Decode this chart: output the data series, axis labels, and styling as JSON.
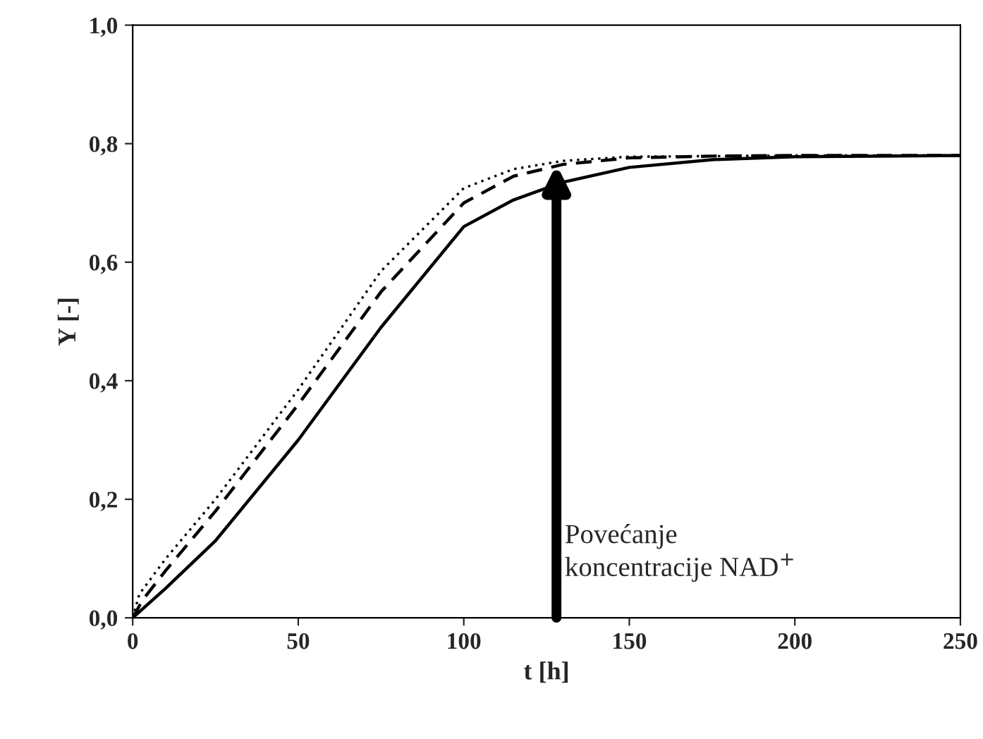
{
  "chart_data": {
    "type": "line",
    "xlabel": "t [h]",
    "ylabel": "Y [-]",
    "xlim": [
      0,
      250
    ],
    "xticks": [
      0,
      50,
      100,
      150,
      200,
      250
    ],
    "ylim": [
      0,
      1.0
    ],
    "yticks": [
      {
        "value": 0,
        "label": "0,0"
      },
      {
        "value": 0.2,
        "label": "0,2"
      },
      {
        "value": 0.4,
        "label": "0,4"
      },
      {
        "value": 0.6,
        "label": "0,6"
      },
      {
        "value": 0.8,
        "label": "0,8"
      },
      {
        "value": 1.0,
        "label": "1,0"
      }
    ],
    "grid": false,
    "series": [
      {
        "color": "#000000",
        "line_style": "solid",
        "x": [
          0,
          10,
          25,
          50,
          75,
          100,
          115,
          130,
          150,
          175,
          200,
          250
        ],
        "values": [
          0,
          0.05,
          0.13,
          0.3,
          0.49,
          0.66,
          0.705,
          0.735,
          0.76,
          0.773,
          0.778,
          0.78
        ]
      },
      {
        "color": "#000000",
        "line_style": "dashed",
        "x": [
          0,
          3,
          10,
          25,
          50,
          75,
          100,
          115,
          130,
          150,
          175,
          200,
          250
        ],
        "values": [
          0,
          0.03,
          0.08,
          0.18,
          0.36,
          0.55,
          0.7,
          0.745,
          0.765,
          0.776,
          0.779,
          0.78,
          0.78
        ]
      },
      {
        "color": "#000000",
        "line_style": "dotted",
        "x": [
          0,
          2,
          10,
          25,
          50,
          75,
          100,
          115,
          130,
          150,
          200,
          250
        ],
        "values": [
          0,
          0.04,
          0.1,
          0.2,
          0.385,
          0.585,
          0.725,
          0.757,
          0.771,
          0.778,
          0.78,
          0.78
        ]
      }
    ],
    "annotations": [
      "Povećanje\nkoncentracije NAD$^{+}$"
    ]
  }
}
